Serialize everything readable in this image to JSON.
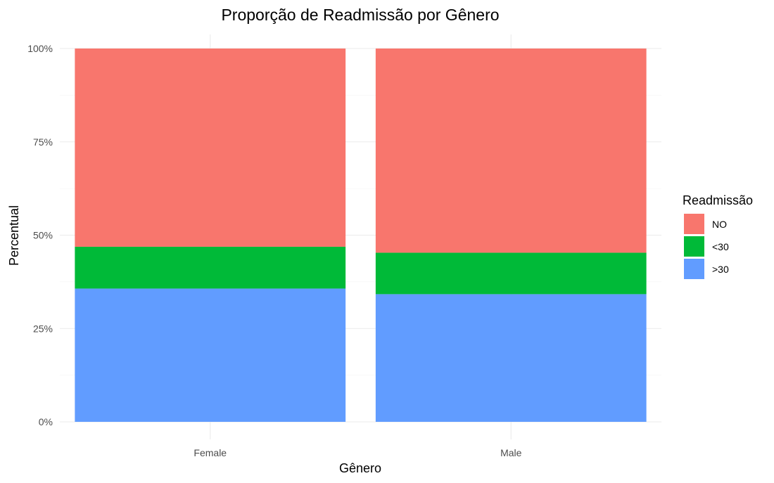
{
  "chart_data": {
    "type": "bar",
    "stacked": true,
    "title": "Proporção de Readmissão por Gênero",
    "xlabel": "Gênero",
    "ylabel": "Percentual",
    "categories": [
      "Female",
      "Male"
    ],
    "ylim": [
      0,
      1
    ],
    "yticks": [
      {
        "value": 0,
        "label": "0%"
      },
      {
        "value": 0.25,
        "label": "25%"
      },
      {
        "value": 0.5,
        "label": "50%"
      },
      {
        "value": 0.75,
        "label": "75%"
      },
      {
        "value": 1,
        "label": "100%"
      }
    ],
    "grid": true,
    "legend": {
      "title": "Readmissão",
      "position": "right"
    },
    "series": [
      {
        "name": ">30",
        "color": "#619CFF",
        "values": [
          0.357,
          0.342
        ]
      },
      {
        "name": "<30",
        "color": "#00BA38",
        "values": [
          0.112,
          0.111
        ]
      },
      {
        "name": "NO",
        "color": "#F8766D",
        "values": [
          0.531,
          0.547
        ]
      }
    ],
    "legend_order": [
      "NO",
      "<30",
      ">30"
    ]
  }
}
